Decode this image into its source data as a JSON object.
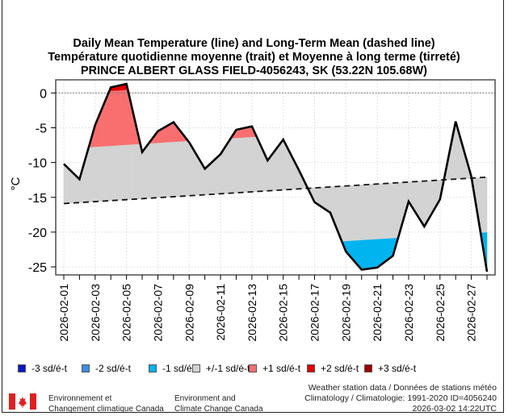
{
  "chart_data": {
    "type": "area",
    "title_lines": [
      "Daily Mean Temperature (line) and Long-Term Mean (dashed line)",
      "Température quotidienne moyenne (trait) et Moyenne à long terme (tirreté)",
      "PRINCE ALBERT GLASS FIELD-4056243, SK (53.22N 105.68W)"
    ],
    "ylabel": "°C",
    "xlabel": "",
    "ylim": [
      -26.2,
      1.9
    ],
    "yticks": [
      0,
      -5,
      -10,
      -15,
      -20,
      -25
    ],
    "xtick_labels": [
      "2026-02-01",
      "2026-02-03",
      "2026-02-05",
      "2026-02-07",
      "2026-02-09",
      "2026-02-11",
      "2026-02-13",
      "2026-02-15",
      "2026-02-17",
      "2026-02-19",
      "2026-02-21",
      "2026-02-23",
      "2026-02-25",
      "2026-02-27"
    ],
    "x": [
      "2026-02-01",
      "2026-02-02",
      "2026-02-03",
      "2026-02-04",
      "2026-02-05",
      "2026-02-06",
      "2026-02-07",
      "2026-02-08",
      "2026-02-09",
      "2026-02-10",
      "2026-02-11",
      "2026-02-12",
      "2026-02-13",
      "2026-02-14",
      "2026-02-15",
      "2026-02-16",
      "2026-02-17",
      "2026-02-18",
      "2026-02-19",
      "2026-02-20",
      "2026-02-21",
      "2026-02-22",
      "2026-02-23",
      "2026-02-24",
      "2026-02-25",
      "2026-02-26",
      "2026-02-27",
      "2026-02-28"
    ],
    "series": [
      {
        "name": "Daily Mean Temperature",
        "style": "solid",
        "values": [
          -10.2,
          -12.4,
          -4.6,
          0.8,
          1.3,
          -8.5,
          -5.5,
          -4.2,
          -7.1,
          -10.9,
          -8.8,
          -5.3,
          -4.8,
          -9.7,
          -6.7,
          -11.1,
          -15.7,
          -17.2,
          -22.8,
          -25.4,
          -25.1,
          -23.4,
          -15.6,
          -19.2,
          -15.3,
          -4.1,
          -12.0,
          -25.7
        ]
      },
      {
        "name": "Long-Term Mean",
        "style": "dashed",
        "start": -15.9,
        "end": -12.1
      }
    ],
    "sd": {
      "start": 7.9,
      "end": 7.9
    },
    "grid": true,
    "zero_line": true,
    "legend": {
      "placement": "bottom",
      "items": [
        {
          "label": "-3 sd/é-t",
          "color": "#0a14c8"
        },
        {
          "label": "-2 sd/é-t",
          "color": "#3c8ce6"
        },
        {
          "label": "-1 sd/é-t",
          "color": "#00b4f0"
        },
        {
          "label": "+/-1 sd/é-t",
          "color": "#d3d3d3"
        },
        {
          "label": "+1 sd/é-t",
          "color": "#f96f6f"
        },
        {
          "label": "+2 sd/é-t",
          "color": "#e00000"
        },
        {
          "label": "+3 sd/é-t",
          "color": "#a00000"
        }
      ]
    }
  },
  "footer": {
    "agency_fr": [
      "Environnement et",
      "Changement climatique Canada"
    ],
    "agency_en": [
      "Environment and",
      "Climate Change Canada"
    ],
    "source_lines": [
      "Weather station data / Données de stations météo",
      "Climatology / Climatologie: 1991-2020 ID=4056240",
      "2026-03-02 14:22UTC"
    ],
    "flag_icon": "canada-flag"
  }
}
